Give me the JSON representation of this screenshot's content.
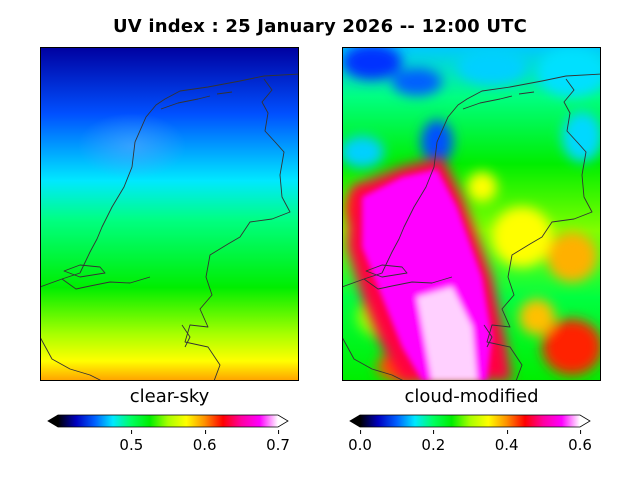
{
  "title": "UV index :  25 January 2026  --  12:00 UTC",
  "panels": [
    {
      "label": "clear-sky",
      "colorbar": {
        "min": 0.4,
        "max": 0.7,
        "ticks": [
          "0.5",
          "0.6",
          "0.7"
        ],
        "tick_values": [
          0.5,
          0.6,
          0.7
        ]
      }
    },
    {
      "label": "cloud-modified",
      "colorbar": {
        "min": 0.0,
        "max": 0.6,
        "ticks": [
          "0.0",
          "0.2",
          "0.4",
          "0.6"
        ],
        "tick_values": [
          0.0,
          0.2,
          0.4,
          0.6
        ]
      }
    }
  ],
  "colormap": [
    "#000000",
    "#0000c0",
    "#0060ff",
    "#00e8ff",
    "#00ff60",
    "#00ee00",
    "#a8ff00",
    "#ffff00",
    "#ff9000",
    "#ff0000",
    "#ff00a0",
    "#ff00ff",
    "#ffffff"
  ]
}
